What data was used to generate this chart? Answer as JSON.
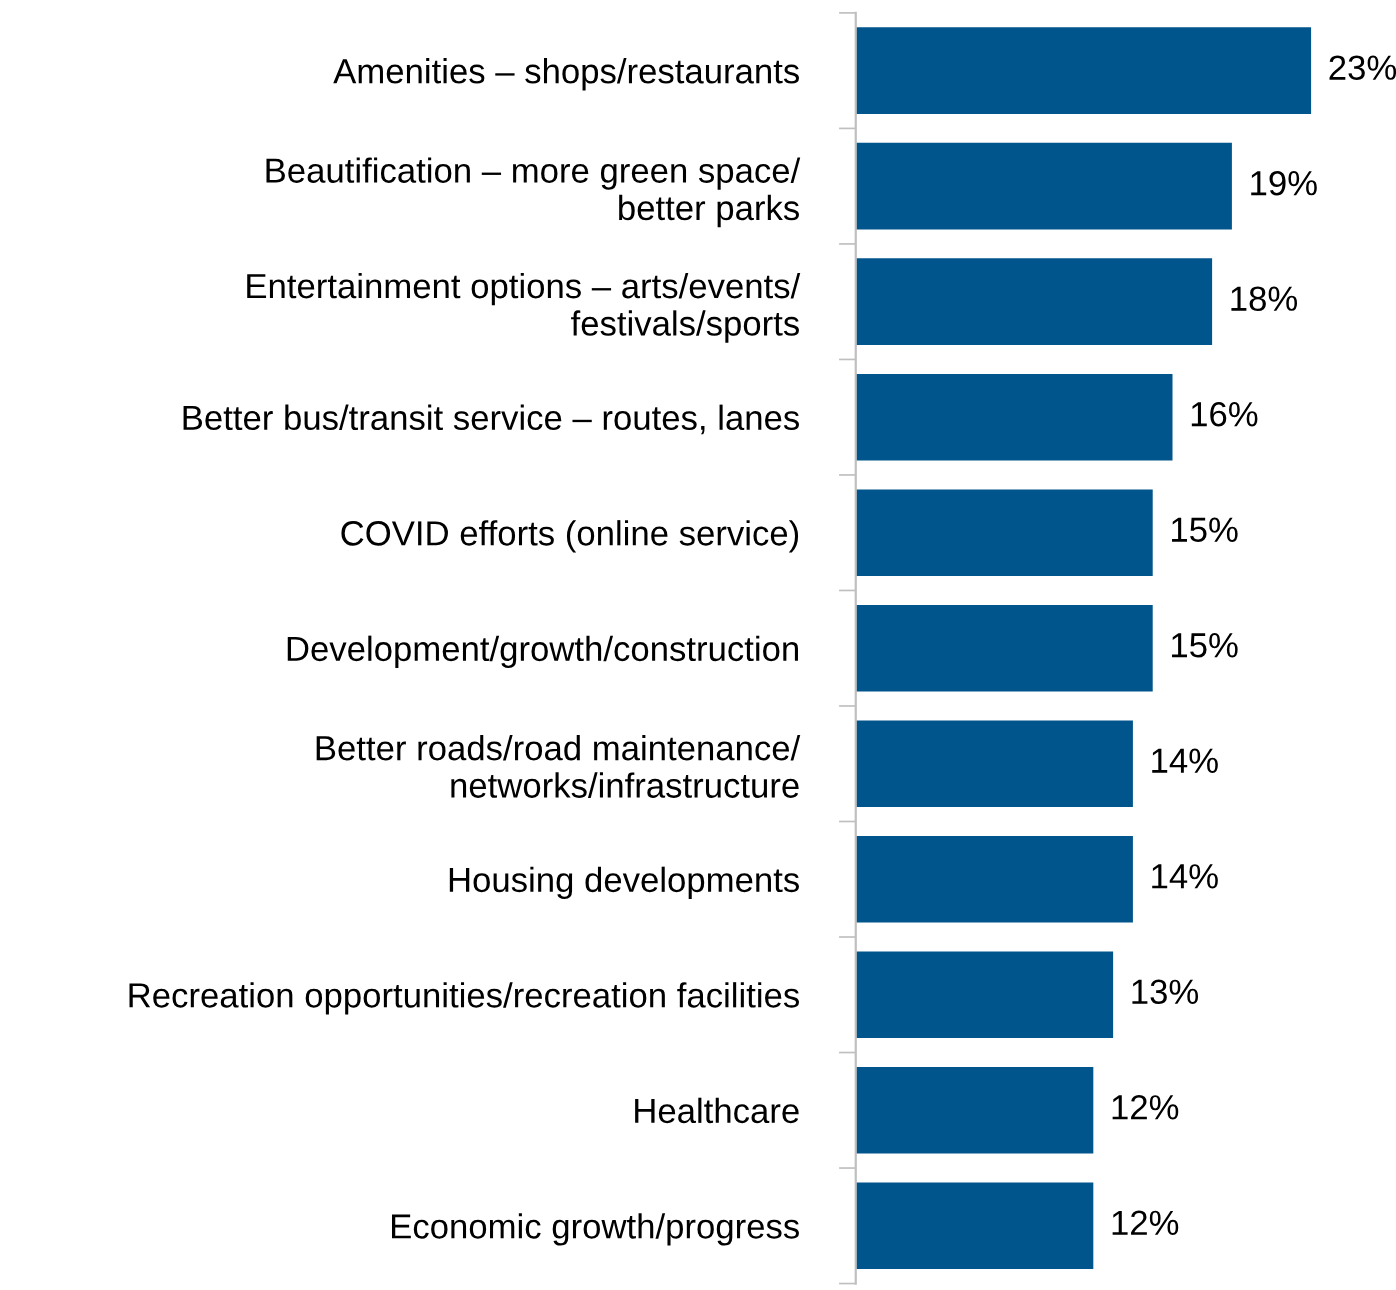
{
  "chart_data": {
    "type": "bar",
    "orientation": "horizontal",
    "categories": [
      "Amenities – shops/restaurants",
      "Beautification – more green space/\nbetter parks",
      "Entertainment options – arts/events/\nfestivals/sports",
      "Better bus/transit service – routes, lanes",
      "COVID efforts (online service)",
      "Development/growth/construction",
      "Better roads/road maintenance/\nnetworks/infrastructure",
      "Housing developments",
      "Recreation opportunities/recreation facilities",
      "Healthcare",
      "Economic growth/progress"
    ],
    "series": [
      {
        "color": "#00558c",
        "values": [
          23,
          19,
          18,
          16,
          15,
          15,
          14,
          14,
          13,
          12,
          12
        ],
        "value_labels": [
          "23%",
          "19%",
          "18%",
          "16%",
          "15%",
          "15%",
          "14%",
          "14%",
          "13%",
          "12%",
          "12%"
        ]
      }
    ],
    "grid": false,
    "legend": false
  }
}
